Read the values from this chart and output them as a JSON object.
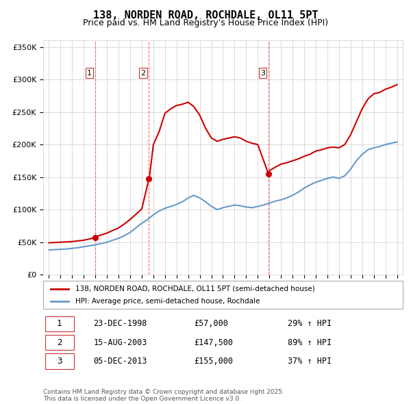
{
  "title": "138, NORDEN ROAD, ROCHDALE, OL11 5PT",
  "subtitle": "Price paid vs. HM Land Registry's House Price Index (HPI)",
  "xlabel": "",
  "ylabel": "",
  "ylim": [
    0,
    360000
  ],
  "yticks": [
    0,
    50000,
    100000,
    150000,
    200000,
    250000,
    300000,
    350000
  ],
  "ytick_labels": [
    "£0",
    "£50K",
    "£100K",
    "£150K",
    "£200K",
    "£250K",
    "£300K",
    "£350K"
  ],
  "sale_dates": [
    "1998-12-23",
    "2003-08-15",
    "2013-12-05"
  ],
  "sale_prices": [
    57000,
    147500,
    155000
  ],
  "sale_labels": [
    "1",
    "2",
    "3"
  ],
  "red_line_color": "#cc0000",
  "blue_line_color": "#6699cc",
  "vline_color": "#ff6666",
  "sale_marker_color": "#cc0000",
  "legend_label_red": "138, NORDEN ROAD, ROCHDALE, OL11 5PT (semi-detached house)",
  "legend_label_blue": "HPI: Average price, semi-detached house, Rochdale",
  "table_entries": [
    {
      "num": "1",
      "date": "23-DEC-1998",
      "price": "£57,000",
      "change": "29% ↑ HPI"
    },
    {
      "num": "2",
      "date": "15-AUG-2003",
      "price": "£147,500",
      "change": "89% ↑ HPI"
    },
    {
      "num": "3",
      "date": "05-DEC-2013",
      "price": "£155,000",
      "change": "37% ↑ HPI"
    }
  ],
  "footnote": "Contains HM Land Registry data © Crown copyright and database right 2025.\nThis data is licensed under the Open Government Licence v3.0.",
  "hpi_years": [
    1995,
    1995.5,
    1996,
    1996.5,
    1997,
    1997.5,
    1998,
    1998.5,
    1999,
    1999.5,
    2000,
    2000.5,
    2001,
    2001.5,
    2002,
    2002.5,
    2003,
    2003.5,
    2004,
    2004.5,
    2005,
    2005.5,
    2006,
    2006.5,
    2007,
    2007.5,
    2008,
    2008.5,
    2009,
    2009.5,
    2010,
    2010.5,
    2011,
    2011.5,
    2012,
    2012.5,
    2013,
    2013.5,
    2014,
    2014.5,
    2015,
    2015.5,
    2016,
    2016.5,
    2017,
    2017.5,
    2018,
    2018.5,
    2019,
    2019.5,
    2020,
    2020.5,
    2021,
    2021.5,
    2022,
    2022.5,
    2023,
    2023.5,
    2024,
    2024.5,
    2025
  ],
  "hpi_values": [
    38000,
    38500,
    39000,
    39500,
    40500,
    41500,
    43000,
    44500,
    46000,
    48000,
    50000,
    53000,
    56000,
    60000,
    65000,
    72000,
    79000,
    85000,
    92000,
    98000,
    102000,
    105000,
    108000,
    112000,
    118000,
    122000,
    118000,
    112000,
    105000,
    100000,
    103000,
    105000,
    107000,
    106000,
    104000,
    103000,
    105000,
    107000,
    110000,
    113000,
    115000,
    118000,
    122000,
    127000,
    133000,
    138000,
    142000,
    145000,
    148000,
    150000,
    148000,
    152000,
    162000,
    175000,
    185000,
    192000,
    195000,
    197000,
    200000,
    202000,
    204000
  ],
  "red_line_years": [
    1995,
    1995.5,
    1996,
    1996.5,
    1997,
    1997.5,
    1998,
    1998.5,
    1998.97,
    1999,
    1999.5,
    2000,
    2000.5,
    2001,
    2001.5,
    2002,
    2002.5,
    2003,
    2003.62,
    2003.65,
    2004,
    2004.5,
    2005,
    2005.5,
    2006,
    2006.5,
    2007,
    2007.5,
    2008,
    2008.5,
    2009,
    2009.5,
    2010,
    2010.5,
    2011,
    2011.5,
    2012,
    2012.5,
    2013,
    2013.92,
    2013.95,
    2014,
    2014.5,
    2015,
    2015.5,
    2016,
    2016.5,
    2017,
    2017.5,
    2018,
    2018.5,
    2019,
    2019.5,
    2020,
    2020.5,
    2021,
    2021.5,
    2022,
    2022.5,
    2023,
    2023.5,
    2024,
    2024.5,
    2025
  ],
  "red_line_values": [
    49000,
    49500,
    50000,
    50500,
    51000,
    52000,
    53000,
    55000,
    57000,
    58500,
    61000,
    64000,
    68000,
    72000,
    78000,
    85000,
    93000,
    101000,
    147500,
    148000,
    200000,
    220000,
    248000,
    255000,
    260000,
    262000,
    265000,
    258000,
    245000,
    225000,
    210000,
    205000,
    208000,
    210000,
    212000,
    210000,
    205000,
    202000,
    200000,
    155000,
    156000,
    160000,
    165000,
    170000,
    172000,
    175000,
    178000,
    182000,
    185000,
    190000,
    192000,
    195000,
    196000,
    195000,
    200000,
    215000,
    235000,
    255000,
    270000,
    278000,
    280000,
    285000,
    288000,
    292000
  ]
}
